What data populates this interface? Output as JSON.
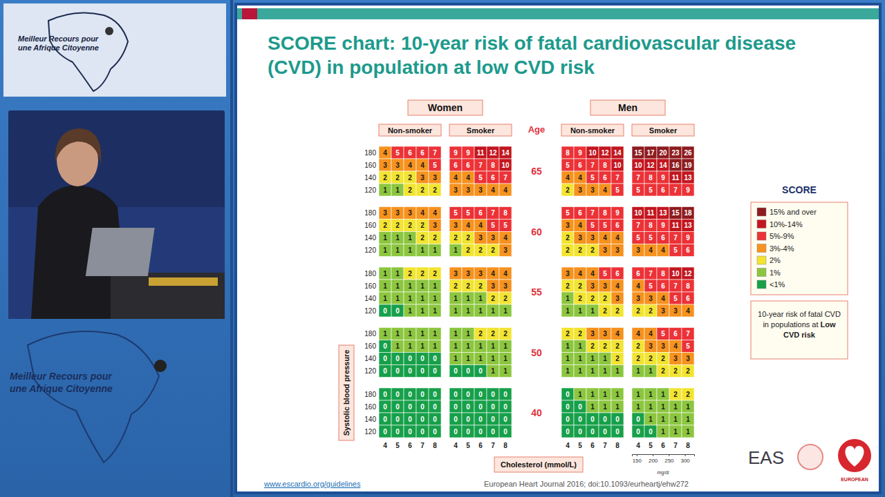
{
  "chart_data": {
    "type": "heatmap",
    "title": "SCORE chart: 10-year risk of fatal cardiovascular disease (CVD) in population at low CVD risk",
    "age_label": "Age",
    "ages": [
      65,
      60,
      55,
      50,
      40
    ],
    "y_label": "Systolic blood pressure",
    "ylim": [
      110,
      190
    ],
    "yticks": [
      180,
      160,
      140,
      120
    ],
    "x_label": "Cholesterol (mmol/L)",
    "xlim": [
      3.5,
      8.5
    ],
    "xticks": [
      4,
      5,
      6,
      7,
      8
    ],
    "x2_label": "mg/dl",
    "x2lim": [
      135.3,
      328.7
    ],
    "x2ticks": [
      150,
      200,
      250,
      300
    ],
    "data_labels": true,
    "sex_groups": [
      {
        "label": "Women",
        "panels": [
          {
            "label": "Non-smoker",
            "values": [
              [
                [
                  4,
                  5,
                  6,
                  6,
                  7
                ],
                [
                  3,
                  3,
                  4,
                  4,
                  5
                ],
                [
                  2,
                  2,
                  2,
                  3,
                  3
                ],
                [
                  1,
                  1,
                  2,
                  2,
                  2
                ]
              ],
              [
                [
                  3,
                  3,
                  3,
                  4,
                  4
                ],
                [
                  2,
                  2,
                  2,
                  2,
                  3
                ],
                [
                  1,
                  1,
                  1,
                  2,
                  2
                ],
                [
                  1,
                  1,
                  1,
                  1,
                  1
                ]
              ],
              [
                [
                  1,
                  1,
                  2,
                  2,
                  2
                ],
                [
                  1,
                  1,
                  1,
                  1,
                  1
                ],
                [
                  1,
                  1,
                  1,
                  1,
                  1
                ],
                [
                  0,
                  0,
                  1,
                  1,
                  1
                ]
              ],
              [
                [
                  1,
                  1,
                  1,
                  1,
                  1
                ],
                [
                  0,
                  1,
                  1,
                  1,
                  1
                ],
                [
                  0,
                  0,
                  0,
                  0,
                  0
                ],
                [
                  0,
                  0,
                  0,
                  0,
                  0
                ]
              ],
              [
                [
                  0,
                  0,
                  0,
                  0,
                  0
                ],
                [
                  0,
                  0,
                  0,
                  0,
                  0
                ],
                [
                  0,
                  0,
                  0,
                  0,
                  0
                ],
                [
                  0,
                  0,
                  0,
                  0,
                  0
                ]
              ]
            ]
          },
          {
            "label": "Smoker",
            "values": [
              [
                [
                  9,
                  9,
                  11,
                  12,
                  14
                ],
                [
                  6,
                  6,
                  7,
                  8,
                  10
                ],
                [
                  4,
                  4,
                  5,
                  6,
                  7
                ],
                [
                  3,
                  3,
                  3,
                  4,
                  4
                ]
              ],
              [
                [
                  5,
                  5,
                  6,
                  7,
                  8
                ],
                [
                  3,
                  4,
                  4,
                  5,
                  5
                ],
                [
                  2,
                  2,
                  3,
                  3,
                  4
                ],
                [
                  1,
                  2,
                  2,
                  2,
                  3
                ]
              ],
              [
                [
                  3,
                  3,
                  3,
                  4,
                  4
                ],
                [
                  2,
                  2,
                  2,
                  3,
                  3
                ],
                [
                  1,
                  1,
                  1,
                  2,
                  2
                ],
                [
                  1,
                  1,
                  1,
                  1,
                  1
                ]
              ],
              [
                [
                  1,
                  1,
                  2,
                  2,
                  2
                ],
                [
                  1,
                  1,
                  1,
                  1,
                  1
                ],
                [
                  1,
                  1,
                  1,
                  1,
                  1
                ],
                [
                  0,
                  0,
                  0,
                  1,
                  1
                ]
              ],
              [
                [
                  0,
                  0,
                  0,
                  0,
                  0
                ],
                [
                  0,
                  0,
                  0,
                  0,
                  0
                ],
                [
                  0,
                  0,
                  0,
                  0,
                  0
                ],
                [
                  0,
                  0,
                  0,
                  0,
                  0
                ]
              ]
            ]
          }
        ]
      },
      {
        "label": "Men",
        "panels": [
          {
            "label": "Non-smoker",
            "values": [
              [
                [
                  8,
                  9,
                  10,
                  12,
                  14
                ],
                [
                  5,
                  6,
                  7,
                  8,
                  10
                ],
                [
                  4,
                  4,
                  5,
                  6,
                  7
                ],
                [
                  2,
                  3,
                  3,
                  4,
                  5
                ]
              ],
              [
                [
                  5,
                  6,
                  7,
                  8,
                  9
                ],
                [
                  3,
                  4,
                  5,
                  5,
                  6
                ],
                [
                  2,
                  3,
                  3,
                  4,
                  4
                ],
                [
                  2,
                  2,
                  2,
                  3,
                  3
                ]
              ],
              [
                [
                  3,
                  4,
                  4,
                  5,
                  6
                ],
                [
                  2,
                  2,
                  3,
                  3,
                  4
                ],
                [
                  1,
                  2,
                  2,
                  2,
                  3
                ],
                [
                  1,
                  1,
                  1,
                  2,
                  2
                ]
              ],
              [
                [
                  2,
                  2,
                  3,
                  3,
                  4
                ],
                [
                  1,
                  1,
                  2,
                  2,
                  2
                ],
                [
                  1,
                  1,
                  1,
                  1,
                  2
                ],
                [
                  1,
                  1,
                  1,
                  1,
                  1
                ]
              ],
              [
                [
                  0,
                  1,
                  1,
                  1,
                  1
                ],
                [
                  0,
                  0,
                  1,
                  1,
                  1
                ],
                [
                  0,
                  0,
                  0,
                  0,
                  0
                ],
                [
                  0,
                  0,
                  0,
                  0,
                  0
                ]
              ]
            ]
          },
          {
            "label": "Smoker",
            "values": [
              [
                [
                  15,
                  17,
                  20,
                  23,
                  26
                ],
                [
                  10,
                  12,
                  14,
                  16,
                  19
                ],
                [
                  7,
                  8,
                  9,
                  11,
                  13
                ],
                [
                  5,
                  5,
                  6,
                  7,
                  9
                ]
              ],
              [
                [
                  10,
                  11,
                  13,
                  15,
                  18
                ],
                [
                  7,
                  8,
                  9,
                  11,
                  13
                ],
                [
                  5,
                  5,
                  6,
                  7,
                  9
                ],
                [
                  3,
                  4,
                  4,
                  5,
                  6
                ]
              ],
              [
                [
                  6,
                  7,
                  8,
                  10,
                  12
                ],
                [
                  4,
                  5,
                  6,
                  7,
                  8
                ],
                [
                  3,
                  3,
                  4,
                  5,
                  6
                ],
                [
                  2,
                  2,
                  3,
                  3,
                  4
                ]
              ],
              [
                [
                  4,
                  4,
                  5,
                  6,
                  7
                ],
                [
                  2,
                  3,
                  3,
                  4,
                  5
                ],
                [
                  2,
                  2,
                  2,
                  3,
                  3
                ],
                [
                  1,
                  1,
                  2,
                  2,
                  2
                ]
              ],
              [
                [
                  1,
                  1,
                  1,
                  2,
                  2
                ],
                [
                  1,
                  1,
                  1,
                  1,
                  1
                ],
                [
                  0,
                  1,
                  1,
                  1,
                  1
                ],
                [
                  0,
                  0,
                  1,
                  1,
                  1
                ]
              ]
            ]
          }
        ]
      }
    ],
    "color_scale": {
      "title": "SCORE",
      "bins": [
        {
          "label": "15% and over",
          "min": 15,
          "color": "#8e1b1e"
        },
        {
          "label": "10%-14%",
          "min": 10,
          "color": "#c3161f"
        },
        {
          "label": "5%-9%",
          "min": 5,
          "color": "#ec3237"
        },
        {
          "label": "3%-4%",
          "min": 3,
          "color": "#f6921e"
        },
        {
          "label": "2%",
          "min": 2,
          "color": "#f2e431"
        },
        {
          "label": "1%",
          "min": 1,
          "color": "#8cc63f"
        },
        {
          "label": "<1%",
          "min": 0,
          "color": "#17a04a"
        }
      ]
    },
    "note_parts": [
      {
        "text": "10-year risk of fatal CVD in populations at ",
        "bold": false
      },
      {
        "text": "Low CVD risk",
        "bold": true
      }
    ]
  },
  "slide": {
    "url": "www.escardio.org/guidelines",
    "reference": "European Heart Journal 2016; doi:10.1093/eurheartj/ehw272",
    "logo_eas": "EAS",
    "logo_esc": "EUROPEAN"
  },
  "sidebar": {
    "logo_lines": [
      "Meilleur Recours pour",
      "une Afrique Citoyenne"
    ]
  }
}
